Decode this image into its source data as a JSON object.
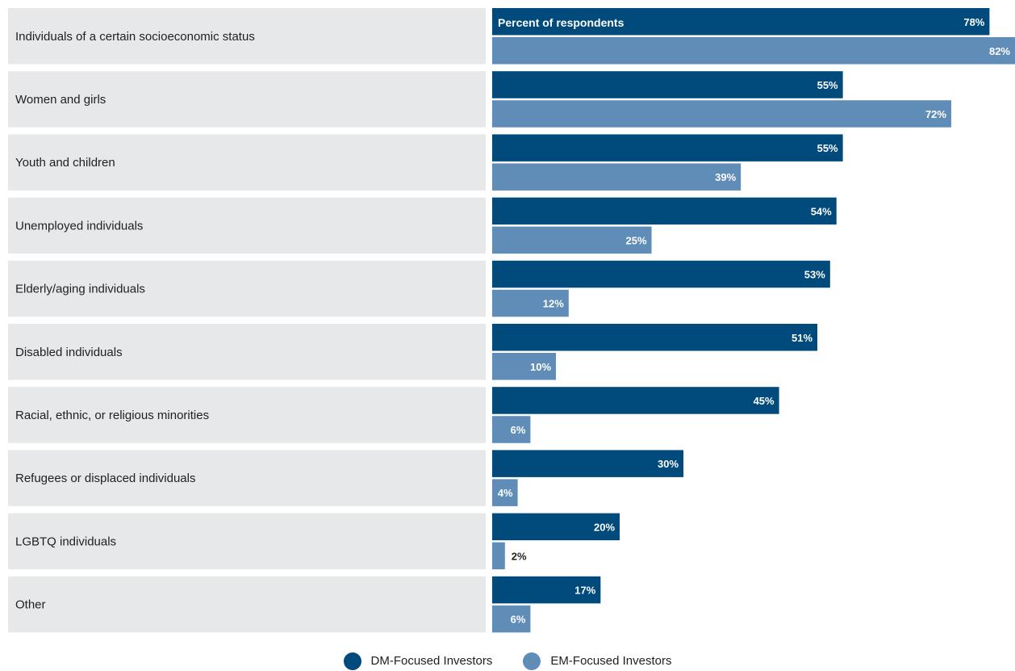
{
  "chart_data": {
    "type": "bar",
    "orientation": "horizontal",
    "header_label": "Percent of respondents",
    "categories": [
      "Individuals of a certain socioeconomic status",
      "Women and girls",
      "Youth and children",
      "Unemployed individuals",
      "Elderly/aging individuals",
      "Disabled individuals",
      "Racial, ethnic, or religious minorities",
      "Refugees or displaced individuals",
      "LGBTQ individuals",
      "Other"
    ],
    "series": [
      {
        "name": "DM-Focused Investors",
        "color": "#004a7c",
        "values": [
          78,
          55,
          55,
          54,
          53,
          51,
          45,
          30,
          20,
          17
        ]
      },
      {
        "name": "EM-Focused Investors",
        "color": "#5f8db8",
        "values": [
          82,
          72,
          39,
          25,
          12,
          10,
          6,
          4,
          2,
          6
        ]
      }
    ],
    "value_suffix": "%",
    "xlim": [
      0,
      82
    ],
    "legend_position": "bottom-center"
  }
}
